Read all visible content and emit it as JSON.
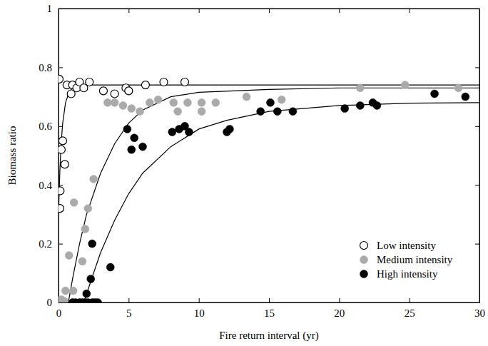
{
  "chart_data": {
    "type": "scatter",
    "x_label": "Fire return interval (yr)",
    "y_label": "Biomass ratio",
    "xlim": [
      0,
      30
    ],
    "xticks": [
      0,
      5,
      10,
      15,
      20,
      25,
      30
    ],
    "ylim": [
      0,
      1
    ],
    "yticks": [
      0,
      0.2,
      0.4,
      0.6,
      0.8,
      1
    ],
    "legend": "lower right",
    "series": [
      {
        "name": "Low intensity",
        "color": "#000000",
        "marker": "open-circle",
        "x": [
          0.05,
          0.1,
          0.12,
          0.2,
          0.3,
          0.45,
          0.6,
          0.9,
          1.0,
          1.3,
          1.5,
          1.8,
          2.2,
          3.2,
          4.0,
          4.8,
          5.0,
          6.2,
          7.5,
          9.0
        ],
        "values": [
          0.76,
          0.32,
          0.38,
          0.52,
          0.55,
          0.47,
          0.74,
          0.71,
          0.74,
          0.73,
          0.75,
          0.73,
          0.75,
          0.72,
          0.71,
          0.73,
          0.72,
          0.74,
          0.75,
          0.75
        ],
        "fit": {
          "x": [
            0,
            0.1,
            0.2,
            0.3,
            0.5,
            0.75,
            1,
            1.5,
            2,
            3,
            5,
            10,
            20,
            30
          ],
          "values": [
            0.3,
            0.45,
            0.55,
            0.61,
            0.68,
            0.715,
            0.73,
            0.738,
            0.74,
            0.74,
            0.74,
            0.74,
            0.74,
            0.74
          ]
        }
      },
      {
        "name": "Medium intensity",
        "color": "#aaaaaa",
        "marker": "circle",
        "x": [
          0.2,
          0.4,
          0.5,
          0.75,
          1.05,
          1.1,
          1.7,
          1.9,
          2.1,
          2.5,
          3.5,
          4.0,
          4.6,
          5.2,
          5.8,
          6.5,
          7.1,
          8.2,
          8.5,
          9.2,
          10.2,
          10.2,
          11.2,
          13.4,
          15.9,
          21.5,
          24.7,
          28.5
        ],
        "values": [
          0.01,
          0.005,
          0.04,
          0.16,
          0.04,
          0.34,
          0.14,
          0.25,
          0.32,
          0.42,
          0.68,
          0.68,
          0.67,
          0.66,
          0.65,
          0.68,
          0.69,
          0.68,
          0.65,
          0.68,
          0.68,
          0.65,
          0.68,
          0.7,
          0.69,
          0.73,
          0.74,
          0.73
        ],
        "fit": {
          "x": [
            0.7,
            1,
            1.5,
            2,
            3,
            4,
            5,
            6,
            8,
            10,
            15,
            20,
            30
          ],
          "values": [
            0,
            0.08,
            0.2,
            0.3,
            0.44,
            0.54,
            0.61,
            0.655,
            0.7,
            0.715,
            0.725,
            0.73,
            0.73
          ]
        }
      },
      {
        "name": "High intensity",
        "color": "#000000",
        "marker": "circle",
        "x": [
          1.0,
          1.2,
          1.5,
          1.7,
          1.9,
          2.1,
          2.4,
          2.6,
          2.8,
          2.0,
          2.3,
          2.4,
          3.7,
          4.9,
          5.2,
          5.4,
          6.0,
          8.1,
          8.6,
          9.0,
          9.3,
          12.0,
          12.2,
          14.4,
          15.1,
          15.6,
          16.7,
          20.4,
          21.5,
          22.4,
          22.7,
          26.8,
          29.0
        ],
        "values": [
          0,
          0,
          0,
          0,
          0,
          0,
          0,
          0,
          0,
          0.03,
          0.08,
          0.2,
          0.12,
          0.59,
          0.52,
          0.56,
          0.53,
          0.58,
          0.59,
          0.6,
          0.58,
          0.58,
          0.59,
          0.65,
          0.68,
          0.65,
          0.65,
          0.66,
          0.67,
          0.68,
          0.67,
          0.71,
          0.7
        ],
        "fit": {
          "x": [
            1.8,
            2.5,
            3,
            4,
            5,
            6,
            8,
            10,
            12,
            15,
            20,
            25,
            30
          ],
          "values": [
            0,
            0.1,
            0.17,
            0.28,
            0.37,
            0.44,
            0.53,
            0.59,
            0.62,
            0.65,
            0.67,
            0.678,
            0.68
          ]
        }
      }
    ]
  }
}
